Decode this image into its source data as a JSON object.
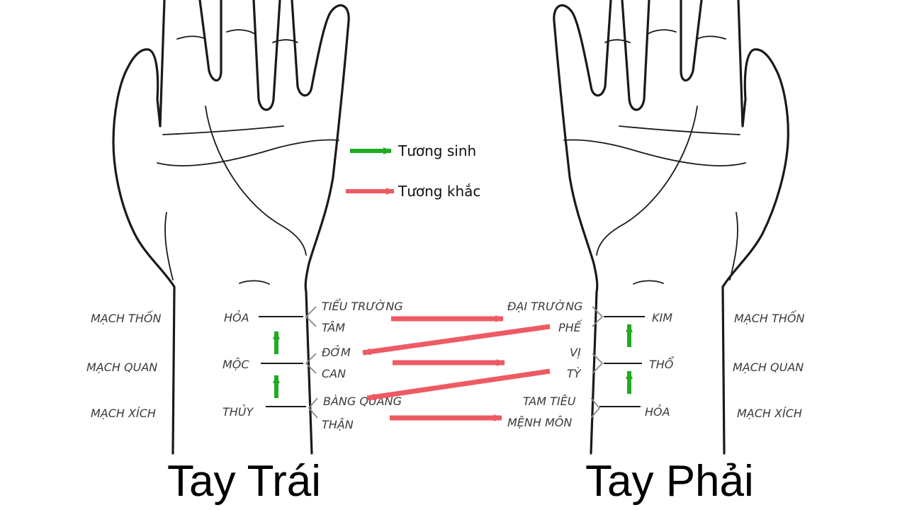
{
  "legend": {
    "sinh_label": "Tương sinh",
    "sinh_color": "#22aa22",
    "khac_label": "Tương khắc",
    "khac_color": "#ee5a63"
  },
  "left_hand": {
    "title": "Tay Trái",
    "positions": [
      "MẠCH THỐN",
      "MẠCH QUAN",
      "MẠCH XÍCH"
    ],
    "elements": [
      "HỎA",
      "MỘC",
      "THỦY"
    ],
    "organs": [
      "TIỂU TRƯỜNG",
      "TÂM",
      "ĐỞM",
      "CAN",
      "BÀNG QUANG",
      "THẬN"
    ]
  },
  "right_hand": {
    "title": "Tay Phải",
    "positions": [
      "MẠCH THỐN",
      "MẠCH QUAN",
      "MẠCH XÍCH"
    ],
    "elements": [
      "KIM",
      "THỔ",
      "HỎA"
    ],
    "organs": [
      "ĐẠI TRƯỜNG",
      "PHẾ",
      "VỊ",
      "TỲ",
      "TAM TIÊU",
      "MỆNH MÔN"
    ]
  }
}
